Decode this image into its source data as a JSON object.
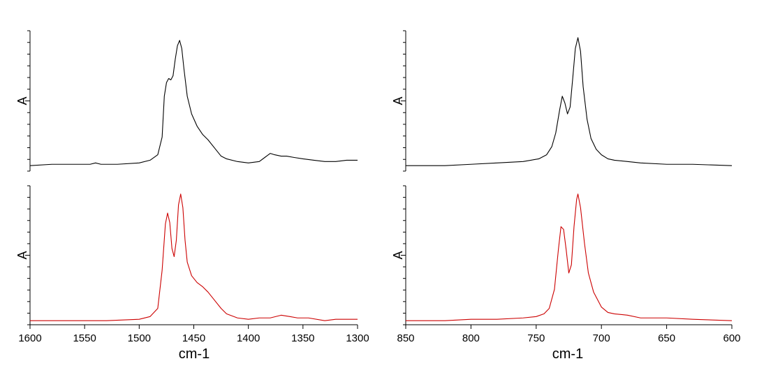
{
  "chart_data": [
    {
      "type": "line",
      "xlabel": "cm-1",
      "ylabel": "A",
      "xlim": [
        1600,
        1300
      ],
      "x_reversed": true,
      "xticks": [
        1600,
        1550,
        1500,
        1450,
        1400,
        1350,
        1300
      ],
      "y_scale": "relative absorbance (0-1)",
      "series": [
        {
          "color": "#000000",
          "points": [
            [
              1600,
              0.04
            ],
            [
              1580,
              0.05
            ],
            [
              1560,
              0.05
            ],
            [
              1545,
              0.05
            ],
            [
              1540,
              0.06
            ],
            [
              1535,
              0.05
            ],
            [
              1520,
              0.05
            ],
            [
              1500,
              0.06
            ],
            [
              1490,
              0.08
            ],
            [
              1483,
              0.12
            ],
            [
              1479,
              0.25
            ],
            [
              1477,
              0.55
            ],
            [
              1475,
              0.65
            ],
            [
              1473,
              0.68
            ],
            [
              1471,
              0.67
            ],
            [
              1469,
              0.7
            ],
            [
              1467,
              0.82
            ],
            [
              1465,
              0.92
            ],
            [
              1463,
              0.96
            ],
            [
              1461,
              0.9
            ],
            [
              1459,
              0.75
            ],
            [
              1456,
              0.55
            ],
            [
              1452,
              0.42
            ],
            [
              1447,
              0.33
            ],
            [
              1442,
              0.27
            ],
            [
              1437,
              0.23
            ],
            [
              1430,
              0.16
            ],
            [
              1425,
              0.11
            ],
            [
              1420,
              0.09
            ],
            [
              1410,
              0.07
            ],
            [
              1400,
              0.06
            ],
            [
              1390,
              0.07
            ],
            [
              1385,
              0.1
            ],
            [
              1380,
              0.13
            ],
            [
              1376,
              0.12
            ],
            [
              1370,
              0.11
            ],
            [
              1365,
              0.11
            ],
            [
              1358,
              0.1
            ],
            [
              1350,
              0.09
            ],
            [
              1340,
              0.08
            ],
            [
              1330,
              0.07
            ],
            [
              1320,
              0.07
            ],
            [
              1310,
              0.08
            ],
            [
              1300,
              0.08
            ]
          ]
        },
        {
          "color": "#cc0000",
          "points": [
            [
              1600,
              0.03
            ],
            [
              1560,
              0.03
            ],
            [
              1530,
              0.03
            ],
            [
              1500,
              0.04
            ],
            [
              1490,
              0.06
            ],
            [
              1483,
              0.12
            ],
            [
              1479,
              0.4
            ],
            [
              1476,
              0.74
            ],
            [
              1474,
              0.82
            ],
            [
              1472,
              0.75
            ],
            [
              1470,
              0.56
            ],
            [
              1468,
              0.5
            ],
            [
              1466,
              0.62
            ],
            [
              1464,
              0.88
            ],
            [
              1462,
              0.96
            ],
            [
              1460,
              0.86
            ],
            [
              1458,
              0.62
            ],
            [
              1456,
              0.46
            ],
            [
              1452,
              0.36
            ],
            [
              1447,
              0.31
            ],
            [
              1442,
              0.28
            ],
            [
              1437,
              0.24
            ],
            [
              1432,
              0.19
            ],
            [
              1425,
              0.12
            ],
            [
              1420,
              0.08
            ],
            [
              1410,
              0.05
            ],
            [
              1400,
              0.04
            ],
            [
              1390,
              0.05
            ],
            [
              1380,
              0.05
            ],
            [
              1370,
              0.07
            ],
            [
              1362,
              0.06
            ],
            [
              1355,
              0.05
            ],
            [
              1345,
              0.05
            ],
            [
              1330,
              0.03
            ],
            [
              1320,
              0.04
            ],
            [
              1310,
              0.04
            ],
            [
              1300,
              0.04
            ]
          ]
        }
      ]
    },
    {
      "type": "line",
      "xlabel": "cm-1",
      "ylabel": "A",
      "xlim": [
        850,
        600
      ],
      "x_reversed": true,
      "xticks": [
        850,
        800,
        750,
        700,
        650,
        600
      ],
      "y_scale": "relative absorbance (0-1)",
      "series": [
        {
          "color": "#000000",
          "points": [
            [
              850,
              0.04
            ],
            [
              820,
              0.04
            ],
            [
              800,
              0.05
            ],
            [
              780,
              0.06
            ],
            [
              760,
              0.07
            ],
            [
              748,
              0.09
            ],
            [
              742,
              0.12
            ],
            [
              738,
              0.18
            ],
            [
              735,
              0.28
            ],
            [
              732,
              0.45
            ],
            [
              730,
              0.55
            ],
            [
              728,
              0.5
            ],
            [
              726,
              0.42
            ],
            [
              724,
              0.47
            ],
            [
              722,
              0.68
            ],
            [
              720,
              0.9
            ],
            [
              718,
              0.98
            ],
            [
              716,
              0.88
            ],
            [
              714,
              0.62
            ],
            [
              711,
              0.38
            ],
            [
              708,
              0.24
            ],
            [
              704,
              0.16
            ],
            [
              700,
              0.12
            ],
            [
              695,
              0.09
            ],
            [
              690,
              0.08
            ],
            [
              680,
              0.07
            ],
            [
              670,
              0.06
            ],
            [
              650,
              0.05
            ],
            [
              630,
              0.05
            ],
            [
              600,
              0.04
            ]
          ]
        },
        {
          "color": "#cc0000",
          "points": [
            [
              850,
              0.03
            ],
            [
              820,
              0.03
            ],
            [
              800,
              0.04
            ],
            [
              780,
              0.04
            ],
            [
              760,
              0.05
            ],
            [
              750,
              0.06
            ],
            [
              744,
              0.08
            ],
            [
              740,
              0.12
            ],
            [
              736,
              0.26
            ],
            [
              733,
              0.55
            ],
            [
              731,
              0.72
            ],
            [
              729,
              0.7
            ],
            [
              727,
              0.55
            ],
            [
              725,
              0.38
            ],
            [
              723,
              0.44
            ],
            [
              721,
              0.72
            ],
            [
              719,
              0.92
            ],
            [
              718,
              0.96
            ],
            [
              716,
              0.86
            ],
            [
              713,
              0.6
            ],
            [
              710,
              0.38
            ],
            [
              706,
              0.24
            ],
            [
              700,
              0.13
            ],
            [
              695,
              0.09
            ],
            [
              690,
              0.08
            ],
            [
              680,
              0.07
            ],
            [
              670,
              0.05
            ],
            [
              650,
              0.05
            ],
            [
              630,
              0.04
            ],
            [
              600,
              0.03
            ]
          ]
        }
      ]
    }
  ]
}
